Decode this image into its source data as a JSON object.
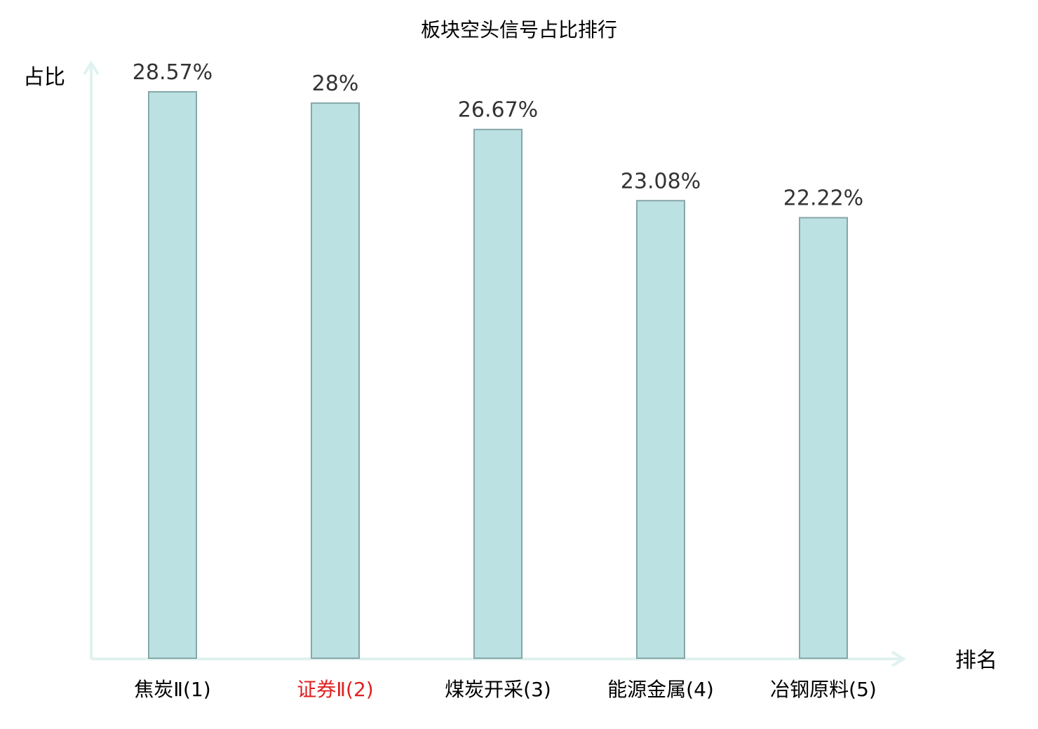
{
  "chart_data": {
    "type": "bar",
    "title": "板块空头信号占比排行",
    "ylabel": "占比",
    "xlabel": "排名",
    "categories": [
      "焦炭Ⅱ(1)",
      "证券Ⅱ(2)",
      "煤炭开采(3)",
      "能源金属(4)",
      "冶钢原料(5)"
    ],
    "values": [
      28.57,
      28,
      26.67,
      23.08,
      22.22
    ],
    "value_labels": [
      "28.57%",
      "28%",
      "26.67%",
      "23.08%",
      "22.22%"
    ],
    "ylim": [
      0,
      28.57
    ],
    "grid": false,
    "legend": "none",
    "colors": {
      "bar_fill": "#bce1e3",
      "bar_stroke": "#86a7a8",
      "axis": "#e0f2ef",
      "label_default": "#000000",
      "label_highlight": "#e02020",
      "value_text": "#333333"
    },
    "highlight_index": 1
  }
}
